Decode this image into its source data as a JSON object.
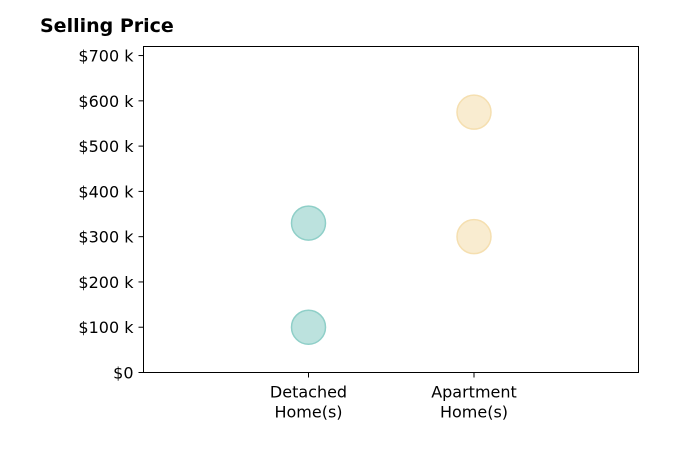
{
  "chart_data": {
    "type": "scatter",
    "title": "Selling Price",
    "xlabel": "",
    "ylabel": "",
    "categories": [
      [
        "Detached",
        "Home(s)"
      ],
      [
        "Apartment",
        "Home(s)"
      ]
    ],
    "ylim": [
      0,
      720
    ],
    "yticks": [
      0,
      100,
      200,
      300,
      400,
      500,
      600,
      700
    ],
    "ytick_labels": [
      "$0",
      "$100 k",
      "$200 k",
      "$300 k",
      "$400 k",
      "$500 k",
      "$600 k",
      "$700 k"
    ],
    "series": [
      {
        "category": 0,
        "values": [
          100,
          330
        ],
        "color": "#8fcfc8"
      },
      {
        "category": 1,
        "values": [
          300,
          575
        ],
        "color": "#f5dfb0"
      }
    ],
    "grid": false,
    "legend": "none"
  }
}
